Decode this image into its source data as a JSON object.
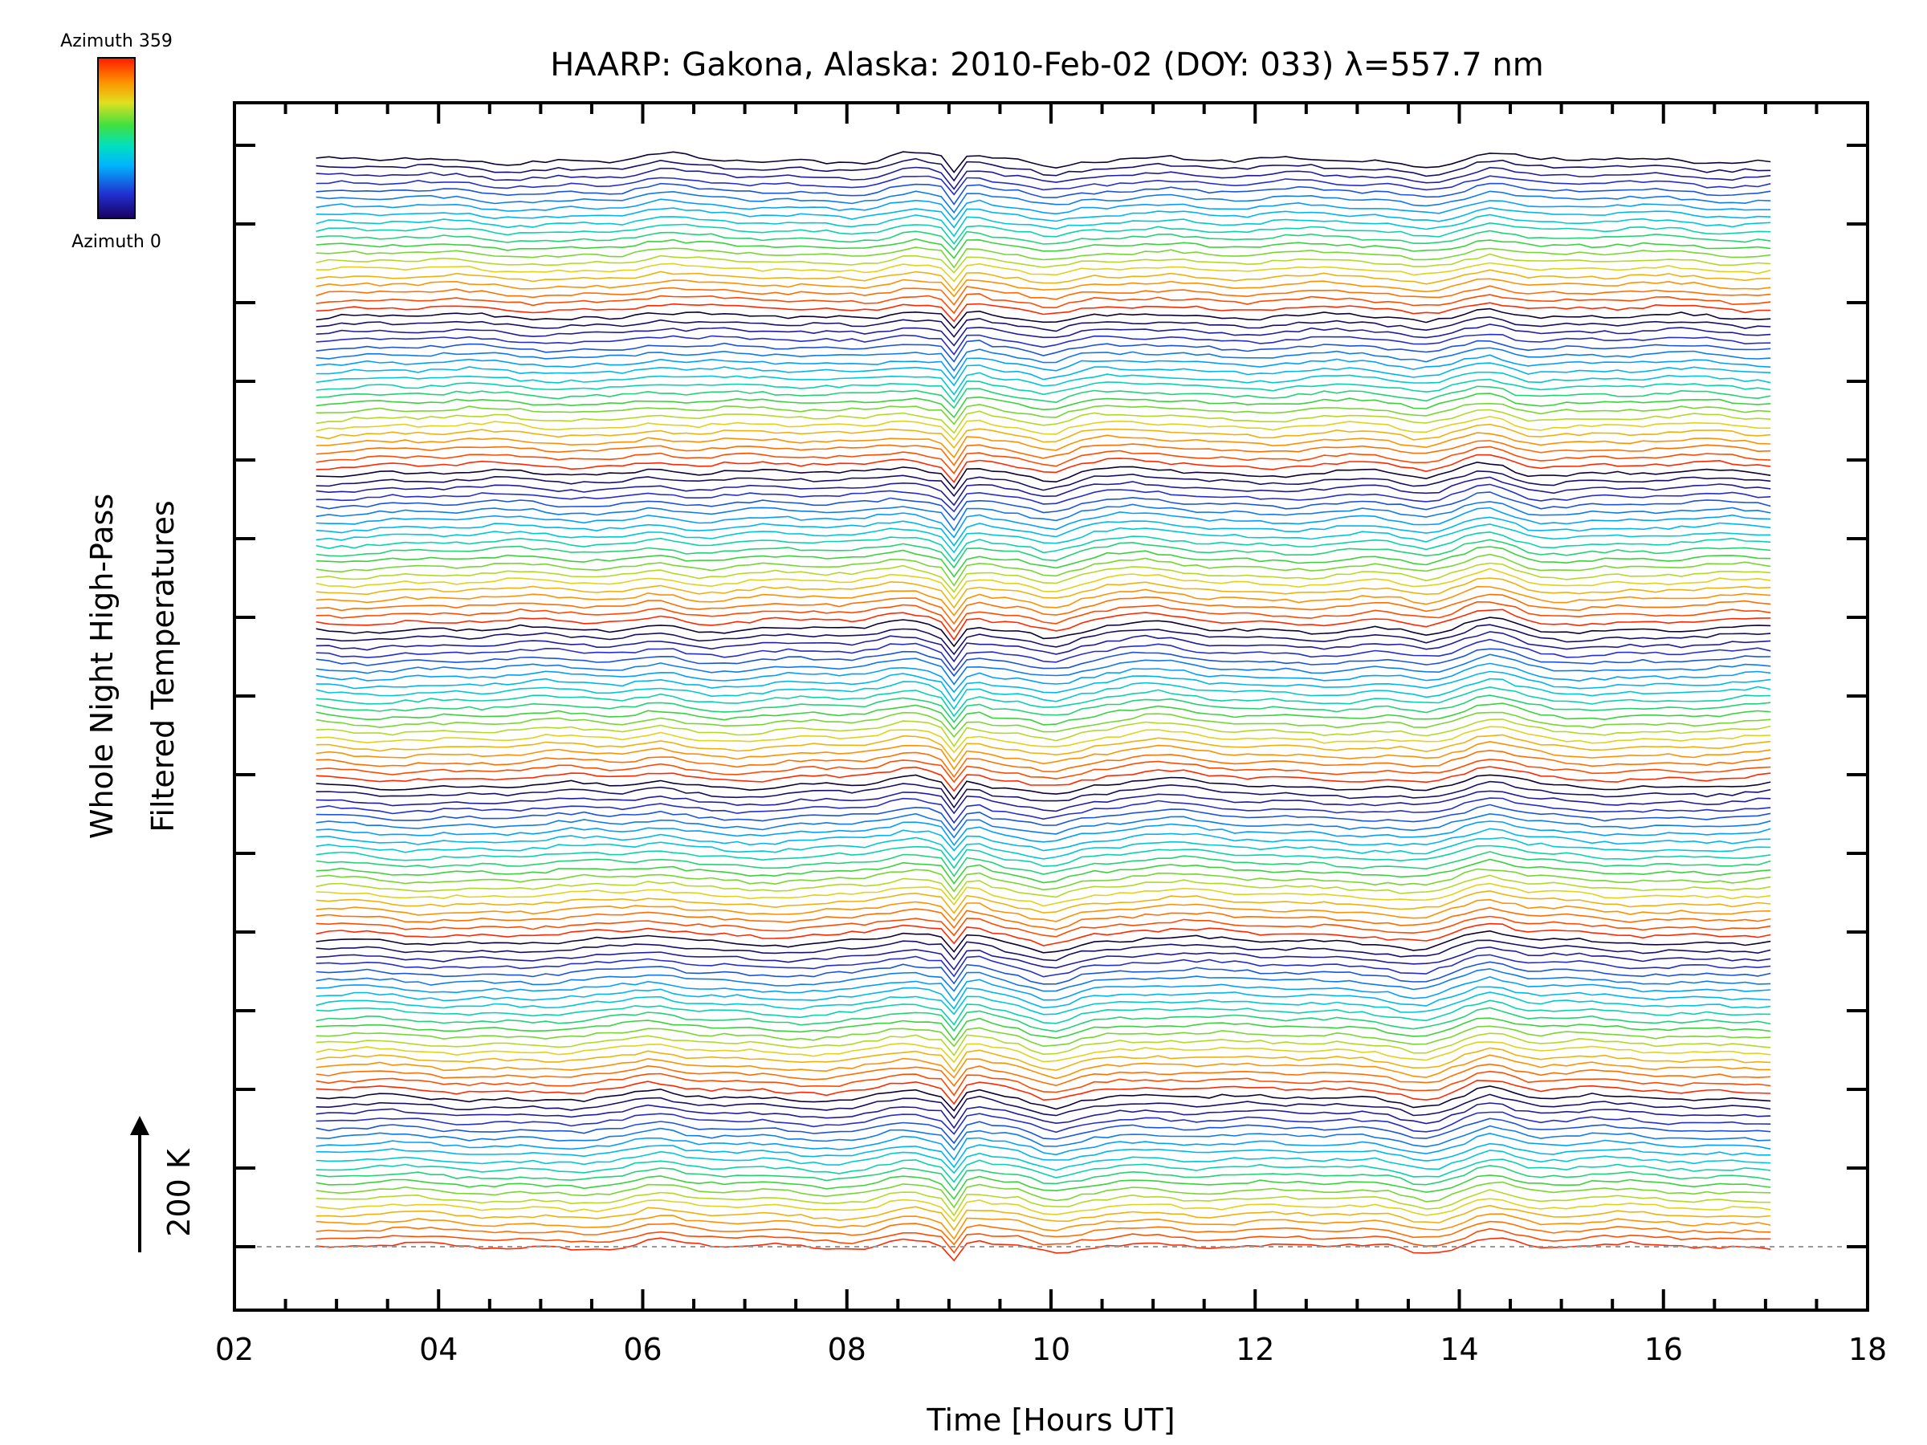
{
  "chart_data": {
    "type": "line",
    "title": "HAARP: Gakona,  Alaska: 2010-Feb-02 (DOY: 033) λ=557.7 nm",
    "xlabel": "Time [Hours UT]",
    "ylabel_line1": "Whole Night High-Pass",
    "ylabel_line2": "Filtered Temperatures",
    "scale_label": "200 K",
    "xlim": [
      2,
      18
    ],
    "x_ticks": [
      "02",
      "04",
      "06",
      "08",
      "10",
      "12",
      "14",
      "16",
      "18"
    ],
    "x_tick_values": [
      2,
      4,
      6,
      8,
      10,
      12,
      14,
      16,
      18
    ],
    "time_range": [
      2.8,
      17.1
    ],
    "colorbar": {
      "top_label": "Azimuth 359",
      "bottom_label": "Azimuth 0",
      "range": [
        0,
        359
      ]
    },
    "n_traces": 140,
    "trace_spacing_K": 25,
    "features": [
      {
        "time": 9.05,
        "note": "sharp dip"
      },
      {
        "time": 10.0,
        "note": "trough"
      },
      {
        "time": 14.3,
        "note": "peak"
      }
    ],
    "grid": false,
    "legend": "colorbar-top-left"
  }
}
